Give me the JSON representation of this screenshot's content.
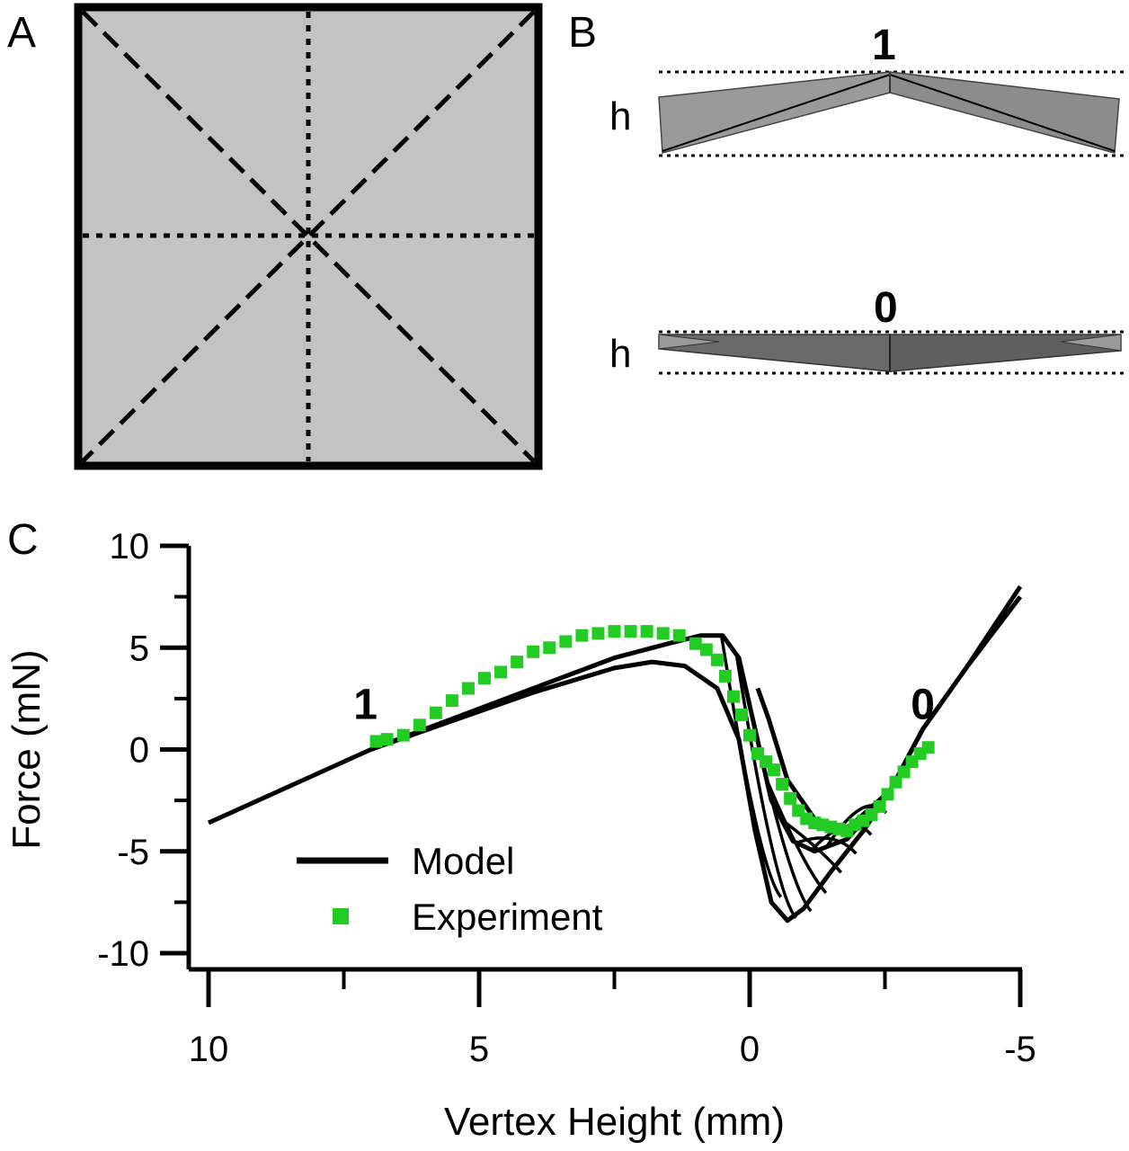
{
  "panels": {
    "a": {
      "letter": "A"
    },
    "b": {
      "letter": "B",
      "top_state": "1",
      "bottom_state": "0",
      "height_symbol": "h"
    },
    "c": {
      "letter": "C"
    }
  },
  "colors": {
    "model": "#000000",
    "experiment": "#22cc22",
    "sheet_fill": "#c3c3c3",
    "facet_light": "#9a9a9a",
    "facet_dark": "#5a5a5a"
  },
  "chart_data": {
    "type": "line",
    "xlabel": "Vertex Height (mm)",
    "ylabel": "Force (mN)",
    "xlim": [
      10,
      -5
    ],
    "ylim": [
      -10,
      10
    ],
    "x_reversed": true,
    "x_ticks": [
      10,
      5,
      0,
      -5
    ],
    "y_ticks": [
      10,
      5,
      0,
      -5,
      -10
    ],
    "x_tick_labels": [
      "10",
      "5",
      "0",
      "-5"
    ],
    "y_tick_labels": [
      "10",
      "5",
      "0",
      "-5",
      "-10"
    ],
    "grid": false,
    "legend_position": "bottom-left",
    "annotations": [
      {
        "text": "1",
        "x": 7.1,
        "y": 2.2
      },
      {
        "text": "0",
        "x": -3.2,
        "y": 2.2
      }
    ],
    "series": [
      {
        "name": "Model",
        "style": "line",
        "curves": [
          [
            [
              10,
              -3.6
            ],
            [
              7,
              0
            ],
            [
              4,
              2.8
            ],
            [
              2.5,
              4.0
            ],
            [
              1.8,
              4.3
            ],
            [
              1.2,
              4.1
            ],
            [
              0.6,
              3.0
            ],
            [
              0.2,
              0.5
            ],
            [
              -0.1,
              -4.0
            ],
            [
              -0.4,
              -7.5
            ],
            [
              -0.7,
              -8.4
            ],
            [
              -1.0,
              -7.8
            ],
            [
              -1.5,
              -6.0
            ],
            [
              -2.1,
              -4.0
            ],
            [
              -2.6,
              -2.0
            ],
            [
              -3.2,
              1.0
            ],
            [
              -4.0,
              4.0
            ],
            [
              -5.0,
              7.5
            ]
          ],
          [
            [
              7,
              0
            ],
            [
              4,
              3.0
            ],
            [
              2.5,
              4.5
            ],
            [
              1.5,
              5.2
            ],
            [
              0.9,
              5.6
            ],
            [
              0.5,
              5.6
            ],
            [
              0.2,
              4.5
            ],
            [
              -0.1,
              1.0
            ],
            [
              -0.4,
              -2.5
            ],
            [
              -0.8,
              -4.5
            ],
            [
              -1.2,
              -5.0
            ],
            [
              -1.8,
              -4.4
            ],
            [
              -2.6,
              -2.0
            ],
            [
              -3.2,
              1.0
            ],
            [
              -4.0,
              4.0
            ],
            [
              -5.0,
              8.0
            ]
          ],
          [
            [
              -0.15,
              3.0
            ],
            [
              -0.35,
              1.5
            ],
            [
              -0.7,
              -1.5
            ],
            [
              -1.2,
              -3.4
            ],
            [
              -1.8,
              -3.9
            ],
            [
              -2.6,
              -2.0
            ]
          ]
        ],
        "hatch_region": {
          "x_from": -0.1,
          "x_to": -2.6,
          "count": 8
        }
      },
      {
        "name": "Experiment",
        "style": "markers",
        "x": [
          6.9,
          6.7,
          6.4,
          6.1,
          5.8,
          5.5,
          5.2,
          4.9,
          4.6,
          4.3,
          4.0,
          3.7,
          3.4,
          3.1,
          2.8,
          2.5,
          2.2,
          1.9,
          1.6,
          1.3,
          1.0,
          0.8,
          0.6,
          0.45,
          0.3,
          0.15,
          0.0,
          -0.15,
          -0.3,
          -0.45,
          -0.6,
          -0.75,
          -0.9,
          -1.05,
          -1.2,
          -1.35,
          -1.5,
          -1.65,
          -1.8,
          -1.95,
          -2.1,
          -2.25,
          -2.4,
          -2.55,
          -2.7,
          -2.85,
          -3.0,
          -3.15,
          -3.3
        ],
        "y": [
          0.4,
          0.5,
          0.7,
          1.2,
          1.8,
          2.4,
          3.0,
          3.5,
          3.8,
          4.3,
          4.8,
          5.0,
          5.3,
          5.6,
          5.7,
          5.8,
          5.8,
          5.8,
          5.7,
          5.6,
          5.2,
          4.9,
          4.4,
          3.6,
          2.6,
          1.7,
          0.7,
          -0.2,
          -0.6,
          -1.0,
          -1.7,
          -2.4,
          -3.0,
          -3.4,
          -3.6,
          -3.7,
          -3.8,
          -3.9,
          -4.0,
          -3.7,
          -3.5,
          -3.2,
          -2.8,
          -2.2,
          -1.6,
          -1.1,
          -0.6,
          -0.2,
          0.1
        ]
      }
    ]
  }
}
